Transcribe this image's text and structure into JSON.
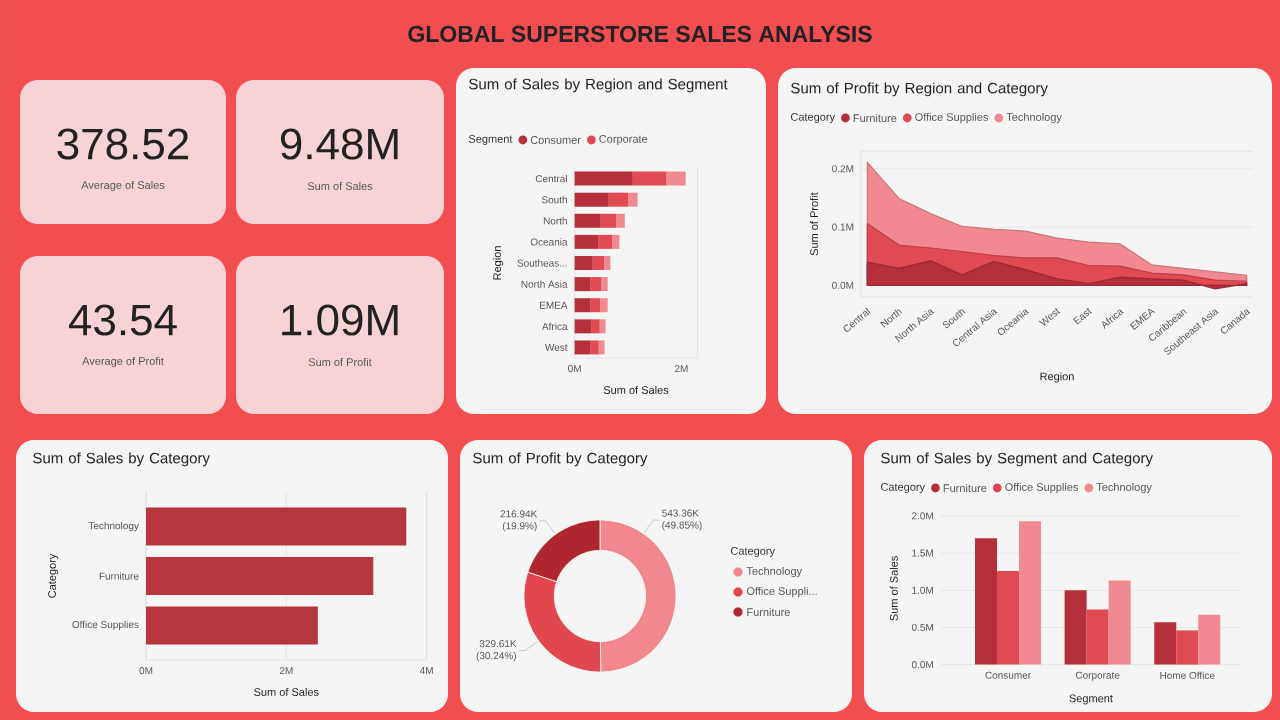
{
  "chart_data": [
    {
      "type": "other",
      "title": "GLOBAL SUPERSTORE SALES ANALYSIS",
      "annotations": [
        "378.52",
        "Average of Sales",
        "9.48M",
        "Sum of Sales",
        "43.54",
        "Average of Profit",
        "1.09M",
        "Sum of Profit"
      ]
    },
    {
      "type": "bar",
      "orientation": "horizontal",
      "stacked": true,
      "title": "Sum of Sales by Region and Segment",
      "xlabel": "Sum of Sales",
      "ylabel": "Region",
      "legend_title": "Segment",
      "legend": "top",
      "categories": [
        "Central",
        "South",
        "North",
        "Oceania",
        "Southeas...",
        "North Asia",
        "EMEA",
        "Africa",
        "West"
      ],
      "series": [
        {
          "name": "Consumer",
          "color": "#b5303a",
          "values": [
            1.09,
            0.64,
            0.49,
            0.44,
            0.34,
            0.3,
            0.3,
            0.32,
            0.29
          ]
        },
        {
          "name": "Corporate",
          "color": "#e04a52",
          "values": [
            0.63,
            0.36,
            0.29,
            0.26,
            0.21,
            0.2,
            0.18,
            0.15,
            0.16
          ]
        },
        {
          "color": "#f08a90",
          "values": [
            0.36,
            0.18,
            0.16,
            0.14,
            0.12,
            0.12,
            0.14,
            0.11,
            0.11
          ]
        }
      ],
      "xlim": [
        0,
        2.3
      ],
      "xticks": [
        {
          "value": 0,
          "label": "0M"
        },
        {
          "value": 2,
          "label": "2M"
        }
      ]
    },
    {
      "type": "area",
      "title": "Sum of Profit by Region and Category",
      "xlabel": "Region",
      "ylabel": "Sum of Profit",
      "legend_title": "Category",
      "legend": "top",
      "grid": "y",
      "categories": [
        "Central",
        "North",
        "North Asia",
        "South",
        "Central Asia",
        "Oceania",
        "West",
        "East",
        "Africa",
        "EMEA",
        "Caribbean",
        "Southeast Asia",
        "Canada"
      ],
      "series": [
        {
          "name": "Furniture",
          "color": "#b5303a",
          "values": [
            0.04,
            0.029,
            0.042,
            0.018,
            0.041,
            0.027,
            0.011,
            0.003,
            0.014,
            0.011,
            0.009,
            -0.006,
            0.003
          ]
        },
        {
          "name": "Office Supplies",
          "color": "#e04a52",
          "values": [
            0.106,
            0.069,
            0.064,
            0.058,
            0.051,
            0.047,
            0.047,
            0.034,
            0.033,
            0.021,
            0.018,
            0.009,
            0.007
          ]
        },
        {
          "name": "Technology",
          "color": "#f08a90",
          "values": [
            0.211,
            0.149,
            0.123,
            0.101,
            0.096,
            0.093,
            0.081,
            0.074,
            0.071,
            0.035,
            0.029,
            0.023,
            0.017
          ]
        }
      ],
      "ylim": [
        -0.02,
        0.23
      ],
      "yticks": [
        {
          "value": 0,
          "label": "0.0M"
        },
        {
          "value": 0.1,
          "label": "0.1M"
        },
        {
          "value": 0.2,
          "label": "0.2M"
        }
      ]
    },
    {
      "type": "bar",
      "orientation": "horizontal",
      "title": "Sum of Sales by Category",
      "xlabel": "Sum of Sales",
      "ylabel": "Category",
      "grid": "x",
      "categories": [
        "Technology",
        "Furniture",
        "Office Supplies"
      ],
      "values": [
        3.71,
        3.24,
        2.45
      ],
      "color": "#b5363c",
      "xlim": [
        0,
        4
      ],
      "xticks": [
        {
          "value": 0,
          "label": "0M"
        },
        {
          "value": 2,
          "label": "2M"
        },
        {
          "value": 4,
          "label": "4M"
        }
      ]
    },
    {
      "type": "donut",
      "title": "Sum of Profit by Category",
      "legend_title": "Category",
      "legend": "right",
      "categories": [
        "Technology",
        "Office Suppli...",
        "Furniture"
      ],
      "values": [
        543360,
        329610,
        216940
      ],
      "colors": [
        "#f0888e",
        "#e0474e",
        "#b0262e"
      ],
      "value_labels": [
        "543.36K (49.85%)",
        "329.61K (30.24%)",
        "216.94K (19.9%)"
      ]
    },
    {
      "type": "bar",
      "title": "Sum of Sales by Segment and Category",
      "xlabel": "Segment",
      "ylabel": "Sum of Sales",
      "legend_title": "Category",
      "legend": "top",
      "grid": "y",
      "categories": [
        "Consumer",
        "Corporate",
        "Home Office"
      ],
      "series": [
        {
          "name": "Furniture",
          "color": "#b5303a",
          "values": [
            1.7,
            1.0,
            0.57
          ]
        },
        {
          "name": "Office Supplies",
          "color": "#e04a52",
          "values": [
            1.26,
            0.74,
            0.46
          ]
        },
        {
          "name": "Technology",
          "color": "#f08a90",
          "values": [
            1.93,
            1.13,
            0.67
          ]
        }
      ],
      "ylim": [
        0,
        2.05
      ],
      "yticks": [
        {
          "value": 0,
          "label": "0.0M"
        },
        {
          "value": 0.5,
          "label": "0.5M"
        },
        {
          "value": 1,
          "label": "1.0M"
        },
        {
          "value": 1.5,
          "label": "1.5M"
        },
        {
          "value": 2,
          "label": "2.0M"
        }
      ]
    }
  ]
}
